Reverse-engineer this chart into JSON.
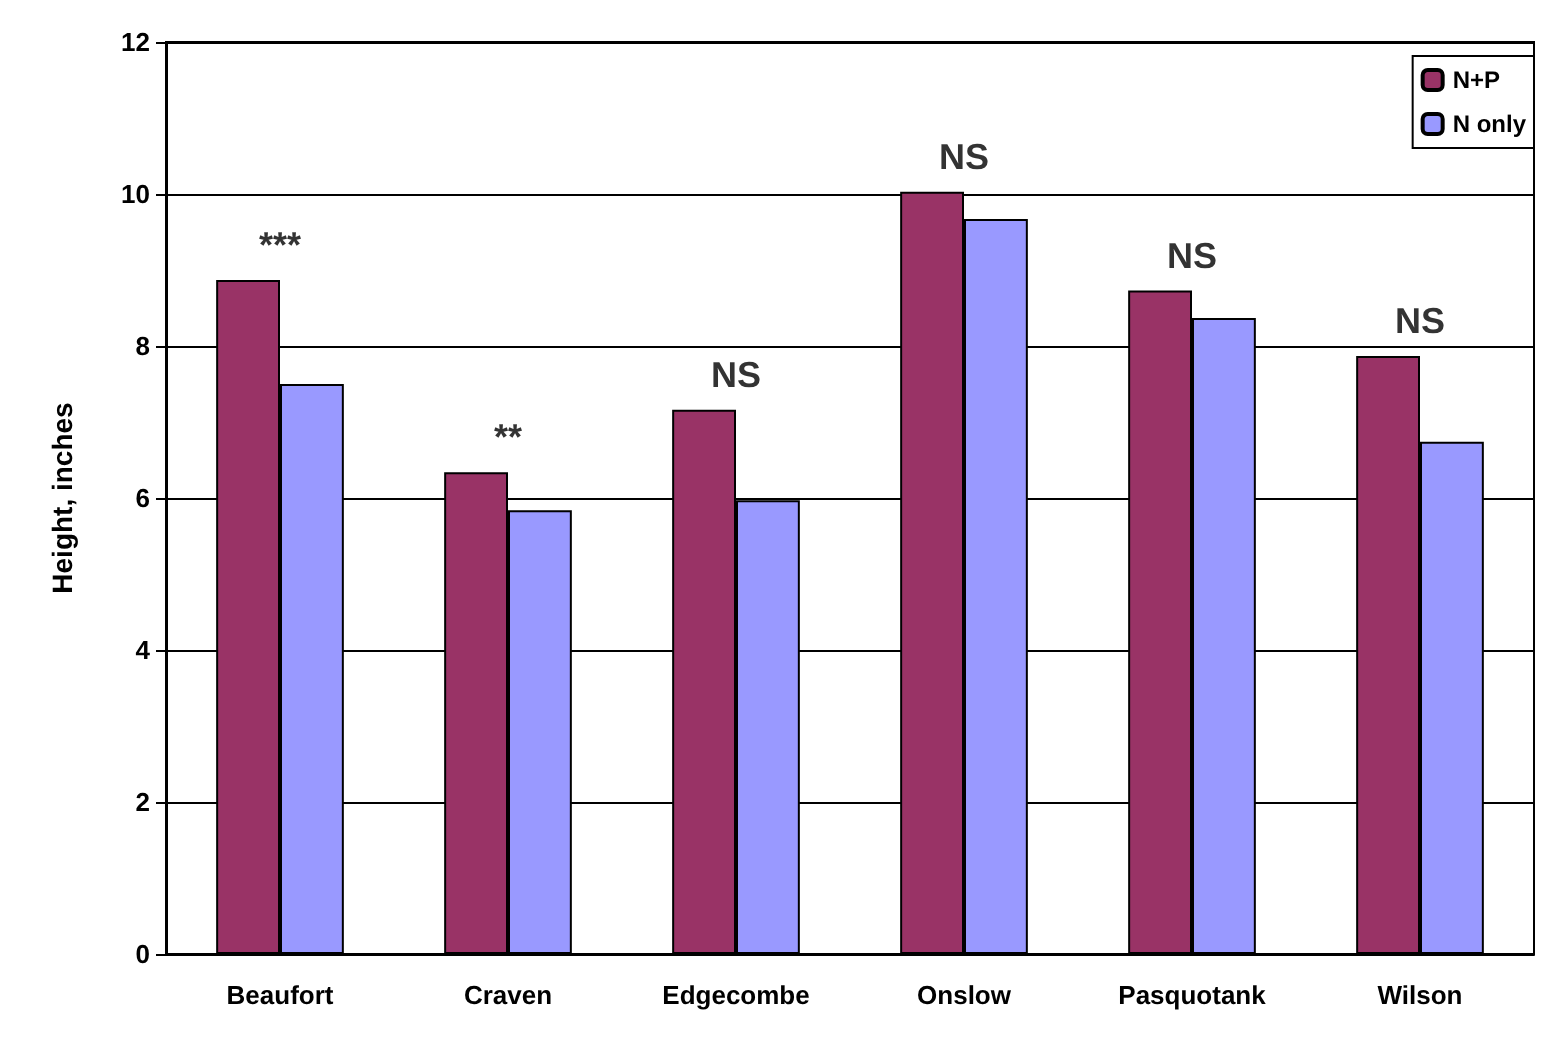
{
  "chart_data": {
    "type": "bar",
    "ylabel": "Height, inches",
    "categories": [
      "Beaufort",
      "Craven",
      "Edgecombe",
      "Onslow",
      "Pasquotank",
      "Wilson"
    ],
    "series": [
      {
        "name": "N+P",
        "color": "#993366",
        "values": [
          8.87,
          6.34,
          7.16,
          10.03,
          8.73,
          7.87
        ]
      },
      {
        "name": "N only",
        "color": "#9999ff",
        "values": [
          7.5,
          5.84,
          5.97,
          9.67,
          8.37,
          6.74
        ]
      }
    ],
    "ylim": [
      0,
      12
    ],
    "yticks": [
      0,
      2,
      4,
      6,
      8,
      10,
      12
    ],
    "grid": "y",
    "legend": "top right",
    "annotations": [
      "***",
      "**",
      "NS",
      "NS",
      "NS",
      "NS"
    ]
  }
}
